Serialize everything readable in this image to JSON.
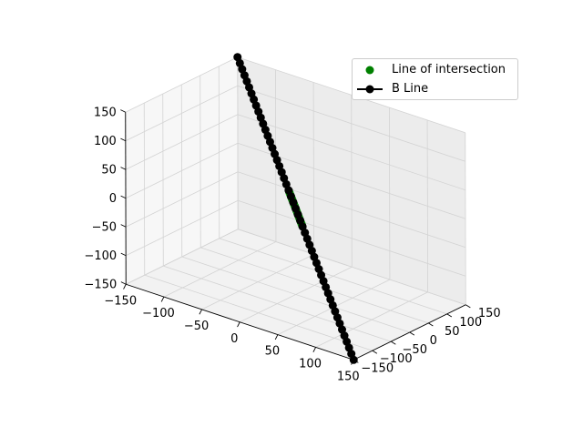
{
  "chart_data": {
    "type": "scatter3d",
    "title": "",
    "xlabel": "",
    "ylabel": "",
    "zlabel": "",
    "xlim": [
      -150,
      150
    ],
    "ylim": [
      -150,
      150
    ],
    "zlim": [
      -150,
      150
    ],
    "xticks": [
      "−150",
      "−100",
      "−50",
      "0",
      "50",
      "100",
      "150"
    ],
    "yticks": [
      "−150",
      "−100",
      "−50",
      "0",
      "50",
      "100",
      "150"
    ],
    "zticks": [
      "−150",
      "−100",
      "−50",
      "0",
      "50",
      "100",
      "150"
    ],
    "grid": true,
    "legend_position": "top-right",
    "series": [
      {
        "name": "Line of intersection",
        "style": "markers",
        "color": "#008000",
        "start": [
          -17,
          17,
          17
        ],
        "end": [
          17,
          -17,
          -17
        ],
        "count": 20
      },
      {
        "name": "B Line",
        "style": "line+markers",
        "color": "#000000",
        "start": [
          -150,
          150,
          150
        ],
        "end": [
          150,
          -150,
          -150
        ],
        "count": 51
      }
    ]
  }
}
